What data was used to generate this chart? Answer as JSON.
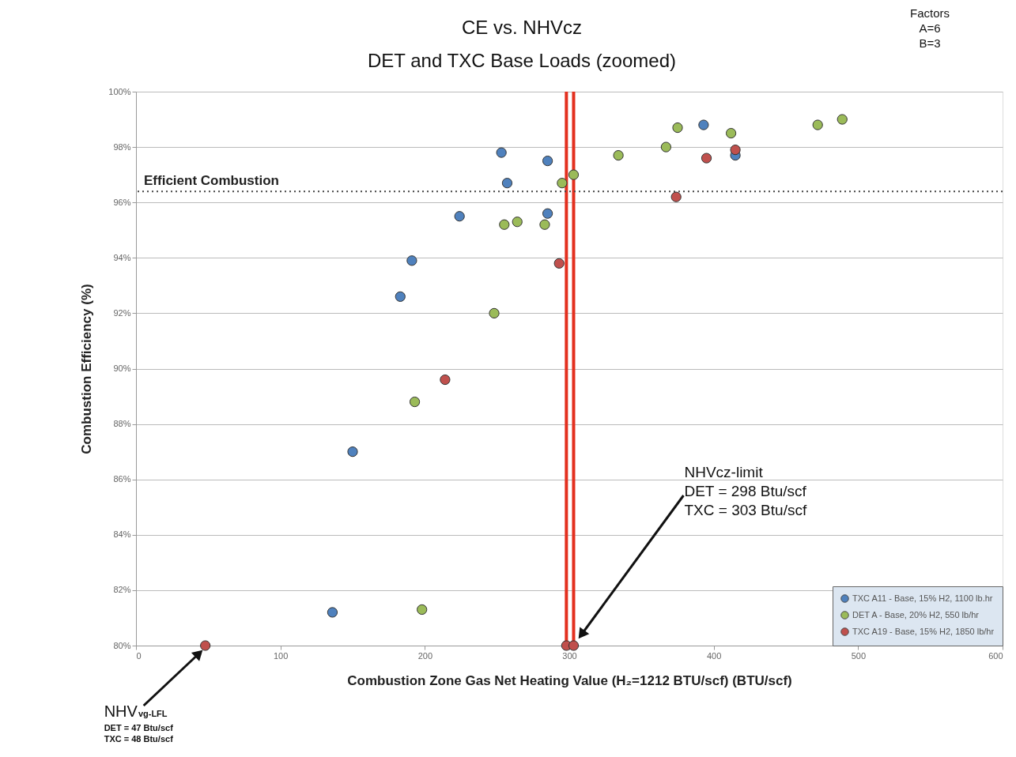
{
  "chart_data": {
    "type": "scatter",
    "title": "CE vs. NHVcz",
    "subtitle": "DET and TXC Base Loads (zoomed)",
    "xlabel": "Combustion Zone Gas Net Heating Value  (H₂=1212 BTU/scf) (BTU/scf)",
    "ylabel": "Combustion Efficiency (%)",
    "xlim": [
      0,
      600
    ],
    "xticks": [
      0,
      100,
      200,
      300,
      400,
      500,
      600
    ],
    "ylim": [
      80,
      100
    ],
    "yticks": [
      {
        "value": 80,
        "label": "80%"
      },
      {
        "value": 82,
        "label": "82%"
      },
      {
        "value": 84,
        "label": "84%"
      },
      {
        "value": 86,
        "label": "86%"
      },
      {
        "value": 88,
        "label": "88%"
      },
      {
        "value": 90,
        "label": "90%"
      },
      {
        "value": 92,
        "label": "92%"
      },
      {
        "value": 94,
        "label": "94%"
      },
      {
        "value": 96,
        "label": "96%"
      },
      {
        "value": 98,
        "label": "98%"
      },
      {
        "value": 100,
        "label": "100%"
      }
    ],
    "grid": "y",
    "legend": "bottom right",
    "marker": "circle",
    "series": [
      {
        "name": "TXC A11 - Base, 15% H2, 1100 lb.hr",
        "color": "#4f81bd",
        "x": [
          253,
          285,
          257,
          224,
          285,
          191,
          183,
          150,
          136,
          393,
          415
        ],
        "values": [
          97.8,
          97.5,
          96.7,
          95.5,
          95.6,
          93.9,
          92.6,
          87.0,
          81.2,
          98.8,
          97.7
        ]
      },
      {
        "name": "DET A - Base, 20% H2, 550 lb/hr",
        "color": "#9bbb59",
        "x": [
          295,
          303,
          255,
          264,
          283,
          248,
          193,
          198,
          334,
          367,
          375,
          412,
          472,
          489
        ],
        "values": [
          96.7,
          97.0,
          95.2,
          95.3,
          95.2,
          92.0,
          88.8,
          81.3,
          97.7,
          98.0,
          98.7,
          98.5,
          98.8,
          99.0
        ]
      },
      {
        "name": "TXC A19 - Base, 15% H2, 1850 lb/hr",
        "color": "#c0504d",
        "x": [
          293,
          214,
          374,
          395,
          415,
          48,
          298,
          303
        ],
        "values": [
          93.8,
          89.6,
          96.2,
          97.6,
          97.9,
          80,
          80,
          80
        ]
      }
    ],
    "ref_lines": [
      {
        "axis": "y",
        "value": 96.4,
        "label": "Efficient Combustion",
        "color": "#444444",
        "line_style": "dotted"
      },
      {
        "axis": "x",
        "value": 298,
        "color": "#e3301f",
        "line_style": "solid"
      },
      {
        "axis": "x",
        "value": 303,
        "color": "#e3301f",
        "line_style": "solid"
      }
    ],
    "annotations": [
      "Factors\nA=6\nB=3",
      "NHVcz-limit\nDET = 298 Btu/scf\nTXC = 303 Btu/scf",
      "NHV$_{vg-LFL}$\nDET = 47 Btu/scf\nTXC = 48 Btu/scf"
    ]
  }
}
